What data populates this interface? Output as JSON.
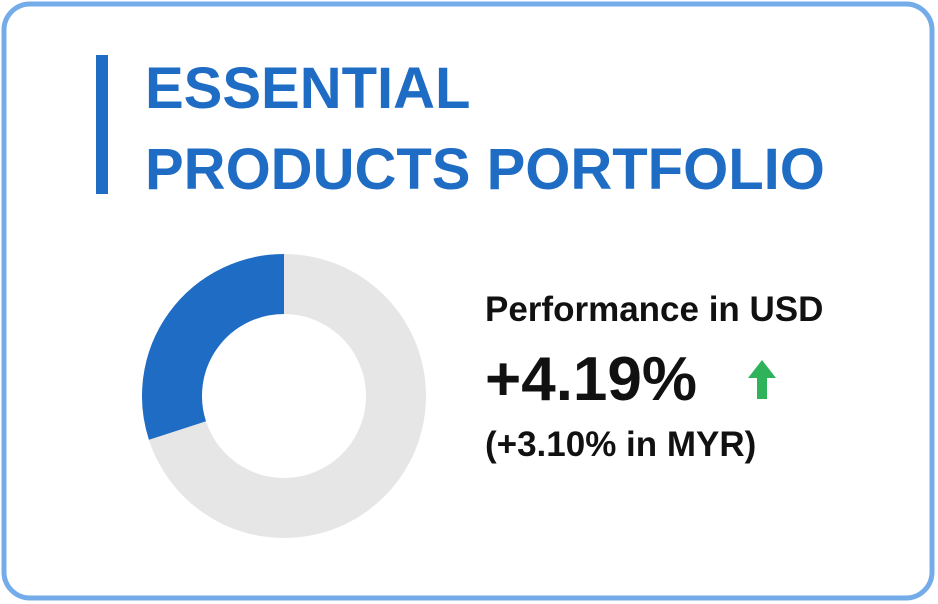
{
  "title_lines": [
    "ESSENTIAL",
    "PRODUCTS PORTFOLIO"
  ],
  "donut": {
    "values": [
      30,
      70
    ],
    "colors": [
      "#1f6cc4",
      "#e6e6e6"
    ]
  },
  "performance": {
    "label": "Performance in USD",
    "value": "+4.19%",
    "secondary": "(+3.10% in MYR)"
  }
}
